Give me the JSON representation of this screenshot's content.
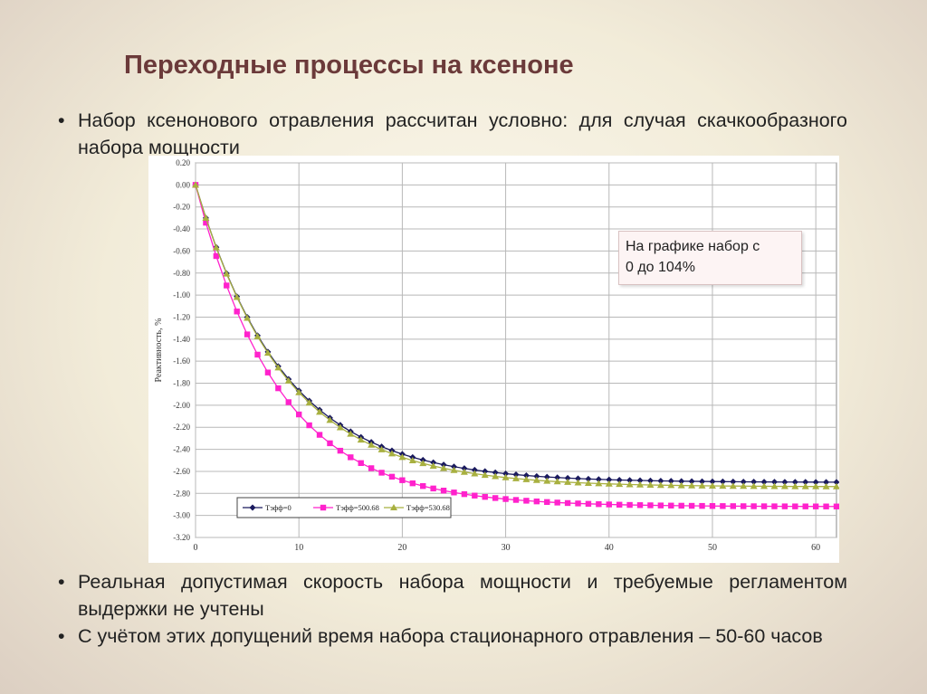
{
  "slide": {
    "title": "Переходные процессы на ксеноне"
  },
  "bullets": [
    {
      "mark": "•",
      "text": "Набор ксенонового отравления рассчитан условно: для случая скачкообразного набора мощности"
    },
    {
      "mark": "•",
      "text": "Реальная допустимая скорость набора мощности и требуемые регламентом выдержки не учтены"
    },
    {
      "mark": "•",
      "text": "С учётом этих допущений время набора стационарного отравления – 50-60 часов"
    }
  ],
  "note": {
    "line1": "На графике набор с",
    "line2": "0 до 104%"
  },
  "chart_data": {
    "type": "line",
    "title": "",
    "xlabel": "",
    "ylabel": "Реактивность, %",
    "xlim": [
      0,
      62
    ],
    "ylim": [
      -3.2,
      0.2
    ],
    "grid": true,
    "legend_position": "bottom-left",
    "x_ticks": [
      "0",
      "10",
      "20",
      "30",
      "40",
      "50",
      "60"
    ],
    "y_ticks": [
      "0.20",
      "0.00",
      "-0.20",
      "-0.40",
      "-0.60",
      "-0.80",
      "-1.00",
      "-1.20",
      "-1.40",
      "-1.60",
      "-1.80",
      "-2.00",
      "-2.20",
      "-2.40",
      "-2.60",
      "-2.80",
      "-3.00",
      "-3.20"
    ],
    "x_tick_values": [
      0,
      10,
      20,
      30,
      40,
      50,
      60
    ],
    "y_tick_values": [
      0.2,
      0.0,
      -0.2,
      -0.4,
      -0.6,
      -0.8,
      -1.0,
      -1.2,
      -1.4,
      -1.6,
      -1.8,
      -2.0,
      -2.2,
      -2.4,
      -2.6,
      -2.8,
      -3.0,
      -3.2
    ],
    "series": [
      {
        "name": "Тэфф=0",
        "color": "#1a1a5e",
        "marker": "diamond",
        "tau": 8.5,
        "asymptote": -2.7
      },
      {
        "name": "Тэфф=500.68",
        "color": "#ff22cc",
        "marker": "square",
        "tau": 8.0,
        "asymptote": -2.92
      },
      {
        "name": "Тэфф=530.68",
        "color": "#a8b040",
        "marker": "triangle",
        "tau": 8.6,
        "asymptote": -2.74
      }
    ],
    "x": [
      0,
      1,
      2,
      3,
      4,
      5,
      6,
      7,
      8,
      9,
      10,
      11,
      12,
      13,
      14,
      15,
      16,
      17,
      18,
      19,
      20,
      21,
      22,
      23,
      24,
      25,
      26,
      27,
      28,
      29,
      30,
      31,
      32,
      33,
      34,
      35,
      36,
      37,
      38,
      39,
      40,
      41,
      42,
      43,
      44,
      45,
      46,
      47,
      48,
      49,
      50,
      51,
      52,
      53,
      54,
      55,
      56,
      57,
      58,
      59,
      60,
      61,
      62
    ]
  }
}
